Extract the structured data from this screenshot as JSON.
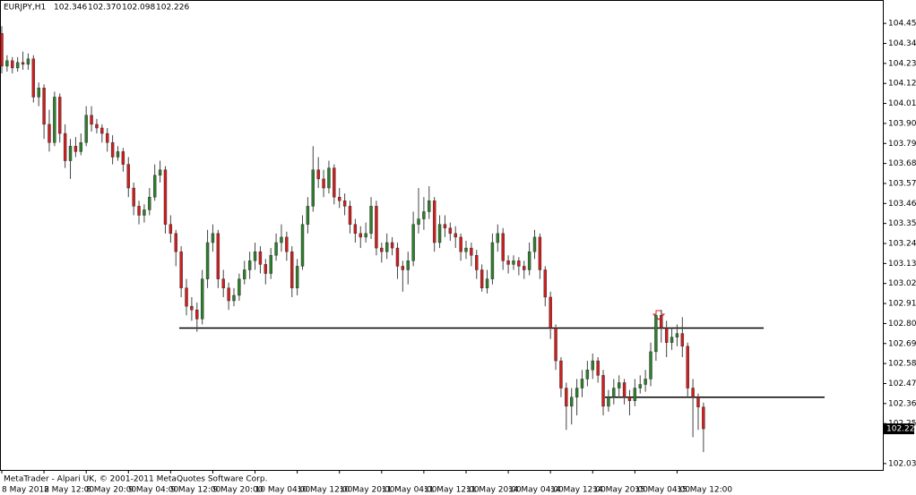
{
  "chart_data": {
    "type": "candlestick",
    "symbol": "EURJPY,H1",
    "last_bar_labels": [
      "102.346",
      "102.370",
      "102.098",
      "102.226"
    ],
    "footer": "MetaTrader - Alpari UK, © 2001-2011 MetaQuotes Software Corp.",
    "up_color": "#2f7d2f",
    "down_color": "#cc1f1f",
    "ylim": [
      102.0,
      104.5
    ],
    "yticks": [
      104.455,
      104.345,
      104.235,
      104.125,
      104.015,
      103.905,
      103.795,
      103.685,
      103.575,
      103.465,
      103.355,
      103.245,
      103.135,
      103.025,
      102.915,
      102.805,
      102.695,
      102.585,
      102.475,
      102.365,
      102.255,
      102.035
    ],
    "xlim": [
      0,
      167
    ],
    "xticks": [
      {
        "value": 0,
        "label": "8 May 2012"
      },
      {
        "value": 8,
        "label": "8 May 12:00"
      },
      {
        "value": 16,
        "label": "8 May 20:00"
      },
      {
        "value": 24,
        "label": "9 May 04:00"
      },
      {
        "value": 32,
        "label": "9 May 12:00"
      },
      {
        "value": 40,
        "label": "9 May 20:00"
      },
      {
        "value": 48,
        "label": "10 May 04:00"
      },
      {
        "value": 56,
        "label": "10 May 12:00"
      },
      {
        "value": 64,
        "label": "10 May 20:00"
      },
      {
        "value": 72,
        "label": "11 May 04:00"
      },
      {
        "value": 80,
        "label": "11 May 12:00"
      },
      {
        "value": 88,
        "label": "11 May 20:00"
      },
      {
        "value": 96,
        "label": "14 May 04:00"
      },
      {
        "value": 104,
        "label": "14 May 12:00"
      },
      {
        "value": 112,
        "label": "14 May 20:00"
      },
      {
        "value": 120,
        "label": "15 May 04:00"
      },
      {
        "value": 128,
        "label": "15 May 12:00"
      }
    ],
    "levels": [
      102.78,
      102.4
    ],
    "candles": [
      [
        104.4,
        104.44,
        104.18,
        104.22
      ],
      [
        104.22,
        104.28,
        104.19,
        104.25
      ],
      [
        104.25,
        104.27,
        104.18,
        104.21
      ],
      [
        104.21,
        104.27,
        104.19,
        104.24
      ],
      [
        104.24,
        104.3,
        104.2,
        104.23
      ],
      [
        104.23,
        104.29,
        104.2,
        104.26
      ],
      [
        104.26,
        104.28,
        104.02,
        104.05
      ],
      [
        104.05,
        104.13,
        104.0,
        104.1
      ],
      [
        104.1,
        104.12,
        103.82,
        103.9
      ],
      [
        103.9,
        103.98,
        103.75,
        103.8
      ],
      [
        103.8,
        104.08,
        103.78,
        104.05
      ],
      [
        104.05,
        104.07,
        103.8,
        103.85
      ],
      [
        103.85,
        103.9,
        103.66,
        103.7
      ],
      [
        103.7,
        103.82,
        103.6,
        103.78
      ],
      [
        103.78,
        103.83,
        103.72,
        103.75
      ],
      [
        103.75,
        103.85,
        103.73,
        103.8
      ],
      [
        103.8,
        104.0,
        103.78,
        103.95
      ],
      [
        103.95,
        104.0,
        103.86,
        103.9
      ],
      [
        103.9,
        103.93,
        103.85,
        103.88
      ],
      [
        103.88,
        103.9,
        103.8,
        103.85
      ],
      [
        103.85,
        103.88,
        103.75,
        103.8
      ],
      [
        103.8,
        103.84,
        103.68,
        103.72
      ],
      [
        103.72,
        103.78,
        103.7,
        103.75
      ],
      [
        103.75,
        103.77,
        103.64,
        103.68
      ],
      [
        103.68,
        103.72,
        103.5,
        103.55
      ],
      [
        103.55,
        103.58,
        103.4,
        103.45
      ],
      [
        103.45,
        103.48,
        103.35,
        103.4
      ],
      [
        103.4,
        103.46,
        103.36,
        103.43
      ],
      [
        103.43,
        103.55,
        103.4,
        103.5
      ],
      [
        103.5,
        103.68,
        103.48,
        103.62
      ],
      [
        103.62,
        103.7,
        103.58,
        103.65
      ],
      [
        103.65,
        103.67,
        103.3,
        103.35
      ],
      [
        103.35,
        103.4,
        103.25,
        103.3
      ],
      [
        103.3,
        103.32,
        103.12,
        103.2
      ],
      [
        103.2,
        103.23,
        102.95,
        103.0
      ],
      [
        103.0,
        103.05,
        102.85,
        102.9
      ],
      [
        102.9,
        102.95,
        102.82,
        102.88
      ],
      [
        102.88,
        102.92,
        102.76,
        102.83
      ],
      [
        102.83,
        103.1,
        102.8,
        103.05
      ],
      [
        103.05,
        103.32,
        103.0,
        103.25
      ],
      [
        103.25,
        103.35,
        103.2,
        103.3
      ],
      [
        103.3,
        103.32,
        103.0,
        103.05
      ],
      [
        103.05,
        103.1,
        102.95,
        103.0
      ],
      [
        103.0,
        103.03,
        102.88,
        102.93
      ],
      [
        102.93,
        103.0,
        102.9,
        102.96
      ],
      [
        102.96,
        103.08,
        102.93,
        103.05
      ],
      [
        103.05,
        103.15,
        103.02,
        103.1
      ],
      [
        103.1,
        103.2,
        103.05,
        103.15
      ],
      [
        103.15,
        103.25,
        103.1,
        103.2
      ],
      [
        103.2,
        103.23,
        103.08,
        103.13
      ],
      [
        103.13,
        103.16,
        103.02,
        103.08
      ],
      [
        103.08,
        103.22,
        103.05,
        103.18
      ],
      [
        103.18,
        103.3,
        103.15,
        103.25
      ],
      [
        103.25,
        103.35,
        103.2,
        103.28
      ],
      [
        103.28,
        103.31,
        103.15,
        103.2
      ],
      [
        103.2,
        103.23,
        102.95,
        103.0
      ],
      [
        103.0,
        103.16,
        102.96,
        103.12
      ],
      [
        103.12,
        103.4,
        103.1,
        103.35
      ],
      [
        103.35,
        103.5,
        103.3,
        103.45
      ],
      [
        103.45,
        103.78,
        103.42,
        103.65
      ],
      [
        103.65,
        103.72,
        103.55,
        103.6
      ],
      [
        103.6,
        103.65,
        103.5,
        103.55
      ],
      [
        103.55,
        103.7,
        103.52,
        103.66
      ],
      [
        103.66,
        103.68,
        103.46,
        103.5
      ],
      [
        103.5,
        103.55,
        103.44,
        103.48
      ],
      [
        103.48,
        103.52,
        103.4,
        103.45
      ],
      [
        103.45,
        103.48,
        103.3,
        103.35
      ],
      [
        103.35,
        103.38,
        103.25,
        103.3
      ],
      [
        103.3,
        103.34,
        103.22,
        103.28
      ],
      [
        103.28,
        103.36,
        103.25,
        103.3
      ],
      [
        103.3,
        103.5,
        103.27,
        103.45
      ],
      [
        103.45,
        103.48,
        103.18,
        103.22
      ],
      [
        103.22,
        103.25,
        103.14,
        103.2
      ],
      [
        103.2,
        103.3,
        103.16,
        103.25
      ],
      [
        103.25,
        103.28,
        103.18,
        103.22
      ],
      [
        103.22,
        103.25,
        103.05,
        103.12
      ],
      [
        103.12,
        103.15,
        102.98,
        103.1
      ],
      [
        103.1,
        103.2,
        103.02,
        103.15
      ],
      [
        103.15,
        103.42,
        103.12,
        103.35
      ],
      [
        103.35,
        103.55,
        103.3,
        103.38
      ],
      [
        103.38,
        103.5,
        103.32,
        103.42
      ],
      [
        103.42,
        103.56,
        103.38,
        103.48
      ],
      [
        103.48,
        103.5,
        103.2,
        103.25
      ],
      [
        103.25,
        103.4,
        103.22,
        103.35
      ],
      [
        103.35,
        103.4,
        103.28,
        103.33
      ],
      [
        103.33,
        103.36,
        103.26,
        103.3
      ],
      [
        103.3,
        103.34,
        103.22,
        103.28
      ],
      [
        103.28,
        103.3,
        103.15,
        103.2
      ],
      [
        103.2,
        103.26,
        103.16,
        103.22
      ],
      [
        103.22,
        103.25,
        103.12,
        103.18
      ],
      [
        103.18,
        103.21,
        103.05,
        103.1
      ],
      [
        103.1,
        103.13,
        102.98,
        103.0
      ],
      [
        103.0,
        103.1,
        102.97,
        103.05
      ],
      [
        103.05,
        103.3,
        103.02,
        103.25
      ],
      [
        103.25,
        103.35,
        103.2,
        103.3
      ],
      [
        103.3,
        103.33,
        103.1,
        103.15
      ],
      [
        103.15,
        103.18,
        103.08,
        103.13
      ],
      [
        103.13,
        103.18,
        103.1,
        103.15
      ],
      [
        103.15,
        103.17,
        103.07,
        103.12
      ],
      [
        103.12,
        103.15,
        103.05,
        103.1
      ],
      [
        103.1,
        103.25,
        103.07,
        103.2
      ],
      [
        103.2,
        103.32,
        103.16,
        103.28
      ],
      [
        103.28,
        103.3,
        103.05,
        103.1
      ],
      [
        103.1,
        103.12,
        102.9,
        102.95
      ],
      [
        102.95,
        102.98,
        102.72,
        102.78
      ],
      [
        102.78,
        102.8,
        102.55,
        102.6
      ],
      [
        102.6,
        102.62,
        102.4,
        102.45
      ],
      [
        102.45,
        102.48,
        102.22,
        102.35
      ],
      [
        102.35,
        102.45,
        102.25,
        102.4
      ],
      [
        102.4,
        102.5,
        102.3,
        102.45
      ],
      [
        102.45,
        102.55,
        102.4,
        102.5
      ],
      [
        102.5,
        102.6,
        102.46,
        102.55
      ],
      [
        102.55,
        102.64,
        102.5,
        102.6
      ],
      [
        102.6,
        102.62,
        102.48,
        102.52
      ],
      [
        102.52,
        102.55,
        102.3,
        102.35
      ],
      [
        102.35,
        102.44,
        102.32,
        102.4
      ],
      [
        102.4,
        102.5,
        102.36,
        102.45
      ],
      [
        102.45,
        102.52,
        102.4,
        102.48
      ],
      [
        102.48,
        102.5,
        102.36,
        102.4
      ],
      [
        102.4,
        102.44,
        102.3,
        102.38
      ],
      [
        102.38,
        102.5,
        102.35,
        102.45
      ],
      [
        102.45,
        102.52,
        102.42,
        102.47
      ],
      [
        102.47,
        102.55,
        102.43,
        102.5
      ],
      [
        102.5,
        102.7,
        102.46,
        102.65
      ],
      [
        102.65,
        102.86,
        102.6,
        102.85
      ],
      [
        102.85,
        102.88,
        102.7,
        102.78
      ],
      [
        102.78,
        102.82,
        102.62,
        102.7
      ],
      [
        102.7,
        102.78,
        102.66,
        102.73
      ],
      [
        102.73,
        102.8,
        102.68,
        102.75
      ],
      [
        102.75,
        102.84,
        102.62,
        102.68
      ],
      [
        102.68,
        102.7,
        102.4,
        102.45
      ],
      [
        102.45,
        102.5,
        102.18,
        102.4
      ],
      [
        102.4,
        102.42,
        102.22,
        102.346
      ],
      [
        102.346,
        102.37,
        102.098,
        102.226
      ]
    ]
  }
}
